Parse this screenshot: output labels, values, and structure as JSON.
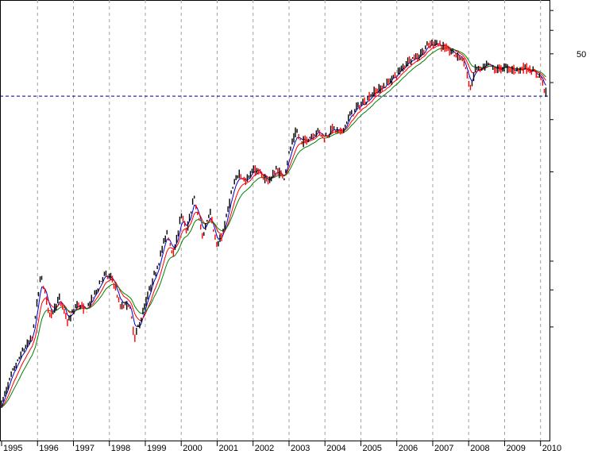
{
  "chart_data": {
    "type": "line",
    "title": "",
    "xlabel": "",
    "ylabel": "",
    "x_tick_labels": [
      "1995",
      "1996",
      "1997",
      "1998",
      "1999",
      "2000",
      "2001",
      "2002",
      "2003",
      "2004",
      "2005",
      "2006",
      "2007",
      "2008",
      "2009",
      "2010"
    ],
    "xlim": [
      1995.0,
      2010.25
    ],
    "y_scale": "log",
    "y_tick_labels": [
      "50"
    ],
    "y_tick_values": [
      50
    ],
    "ylim": [
      2.5,
      75
    ],
    "reference_line": {
      "value": 36,
      "style": "dashed",
      "color": "#000080"
    },
    "grid": {
      "vertical": true,
      "horizontal": false,
      "style": "dashed"
    },
    "colors": {
      "price": "#000000",
      "price_down": "#ff0000",
      "ma_short": "#0000cc",
      "ma_mid": "#ff0000",
      "ma_long": "#008000"
    },
    "price_anchors": {
      "x": [
        1995.0,
        1995.3,
        1995.6,
        1995.85,
        1996.1,
        1996.35,
        1996.6,
        1996.85,
        1997.1,
        1997.35,
        1997.6,
        1997.85,
        1998.1,
        1998.3,
        1998.55,
        1998.7,
        1998.85,
        1999.05,
        1999.3,
        1999.6,
        1999.8,
        2000.0,
        2000.15,
        2000.35,
        2000.6,
        2000.8,
        2001.0,
        2001.2,
        2001.4,
        2001.6,
        2001.8,
        2002.0,
        2002.25,
        2002.45,
        2002.65,
        2002.85,
        2003.0,
        2003.2,
        2003.35,
        2003.55,
        2003.8,
        2004.0,
        2004.2,
        2004.45,
        2004.7,
        2004.9,
        2005.1,
        2005.35,
        2005.6,
        2005.85,
        2006.1,
        2006.35,
        2006.6,
        2006.85,
        2007.1,
        2007.35,
        2007.6,
        2007.85,
        2008.05,
        2008.2,
        2008.35,
        2008.55,
        2008.75,
        2009.0,
        2009.3,
        2009.6,
        2009.85,
        2010.0,
        2010.15
      ],
      "y": [
        3.3,
        4.2,
        5.0,
        5.5,
        9.0,
        6.5,
        7.5,
        6.2,
        7.2,
        6.8,
        7.8,
        9.0,
        8.7,
        7.0,
        7.2,
        5.5,
        6.2,
        7.5,
        9.3,
        12.5,
        10.5,
        14.5,
        12.5,
        16.5,
        12.0,
        15.0,
        11.0,
        13.0,
        17.0,
        20.0,
        18.5,
        20.5,
        19.5,
        18.5,
        20.5,
        19.0,
        23.0,
        27.5,
        25.0,
        26.0,
        27.5,
        26.0,
        28.0,
        27.0,
        31.0,
        33.0,
        34.5,
        37.0,
        38.5,
        41.0,
        44.0,
        48.0,
        49.0,
        53.0,
        55.0,
        52.0,
        50.0,
        48.0,
        38.0,
        45.0,
        44.0,
        46.0,
        44.0,
        45.0,
        44.0,
        45.0,
        43.0,
        42.0,
        37.0
      ]
    },
    "series": [
      {
        "values_from": "price_anchors"
      },
      {
        "smoothing_periods": 4
      },
      {
        "smoothing_periods": 9
      },
      {
        "smoothing_periods": 16
      }
    ]
  }
}
